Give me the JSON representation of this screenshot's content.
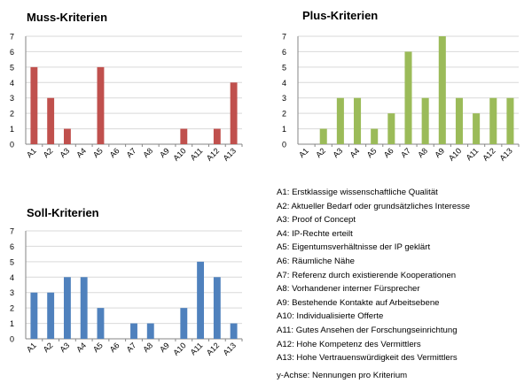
{
  "charts": [
    {
      "id": "muss",
      "title": "Muss-Kriterien",
      "color": "#C0504D",
      "chart_data": {
        "type": "bar",
        "title": "Muss-Kriterien",
        "categories": [
          "A1",
          "A2",
          "A3",
          "A4",
          "A5",
          "A6",
          "A7",
          "A8",
          "A9",
          "A10",
          "A11",
          "A12",
          "A13"
        ],
        "values": [
          5,
          3,
          1,
          0,
          5,
          0,
          0,
          0,
          0,
          1,
          0,
          1,
          4
        ],
        "ylim": [
          0,
          7
        ],
        "yticks": [
          0,
          1,
          2,
          3,
          4,
          5,
          6,
          7
        ],
        "grid": true
      }
    },
    {
      "id": "plus",
      "title": "Plus-Kriterien",
      "color": "#9BBB59",
      "chart_data": {
        "type": "bar",
        "title": "Plus-Kriterien",
        "categories": [
          "A1",
          "A2",
          "A3",
          "A4",
          "A5",
          "A6",
          "A7",
          "A8",
          "A9",
          "A10",
          "A11",
          "A12",
          "A13"
        ],
        "values": [
          0,
          1,
          3,
          3,
          1,
          2,
          6,
          3,
          7,
          3,
          2,
          3,
          3
        ],
        "ylim": [
          0,
          7
        ],
        "yticks": [
          0,
          1,
          2,
          3,
          4,
          5,
          6,
          7
        ],
        "grid": true
      }
    },
    {
      "id": "soll",
      "title": "Soll-Kriterien",
      "color": "#4F81BD",
      "chart_data": {
        "type": "bar",
        "title": "Soll-Kriterien",
        "categories": [
          "A1",
          "A2",
          "A3",
          "A4",
          "A5",
          "A6",
          "A7",
          "A8",
          "A9",
          "A10",
          "A11",
          "A12",
          "A13"
        ],
        "values": [
          3,
          3,
          4,
          4,
          2,
          0,
          1,
          1,
          0,
          2,
          5,
          4,
          1
        ],
        "ylim": [
          0,
          7
        ],
        "yticks": [
          0,
          1,
          2,
          3,
          4,
          5,
          6,
          7
        ],
        "grid": true
      }
    }
  ],
  "legend": [
    "A1: Erstklassige wissenschaftliche Qualität",
    "A2: Aktueller Bedarf oder grundsätzliches Interesse",
    "A3: Proof of Concept",
    "A4: IP-Rechte erteilt",
    "A5: Eigentumsverhältnisse der IP geklärt",
    "A6: Räumliche Nähe",
    "A7: Referenz durch existierende Kooperationen",
    "A8: Vorhandener interner Fürsprecher",
    "A9: Bestehende Kontakte auf Arbeitsebene",
    "A10: Individualisierte Offerte",
    "A11: Gutes Ansehen der Forschungseinrichtung",
    "A12: Hohe Kompetenz des Vermittlers",
    "A13: Hohe Vertrauenswürdigkeit des Vermittlers"
  ],
  "axis_note": "y-Achse: Nennungen pro Kriterium",
  "grid_color": "#D9D9D9",
  "axis_color": "#868686"
}
